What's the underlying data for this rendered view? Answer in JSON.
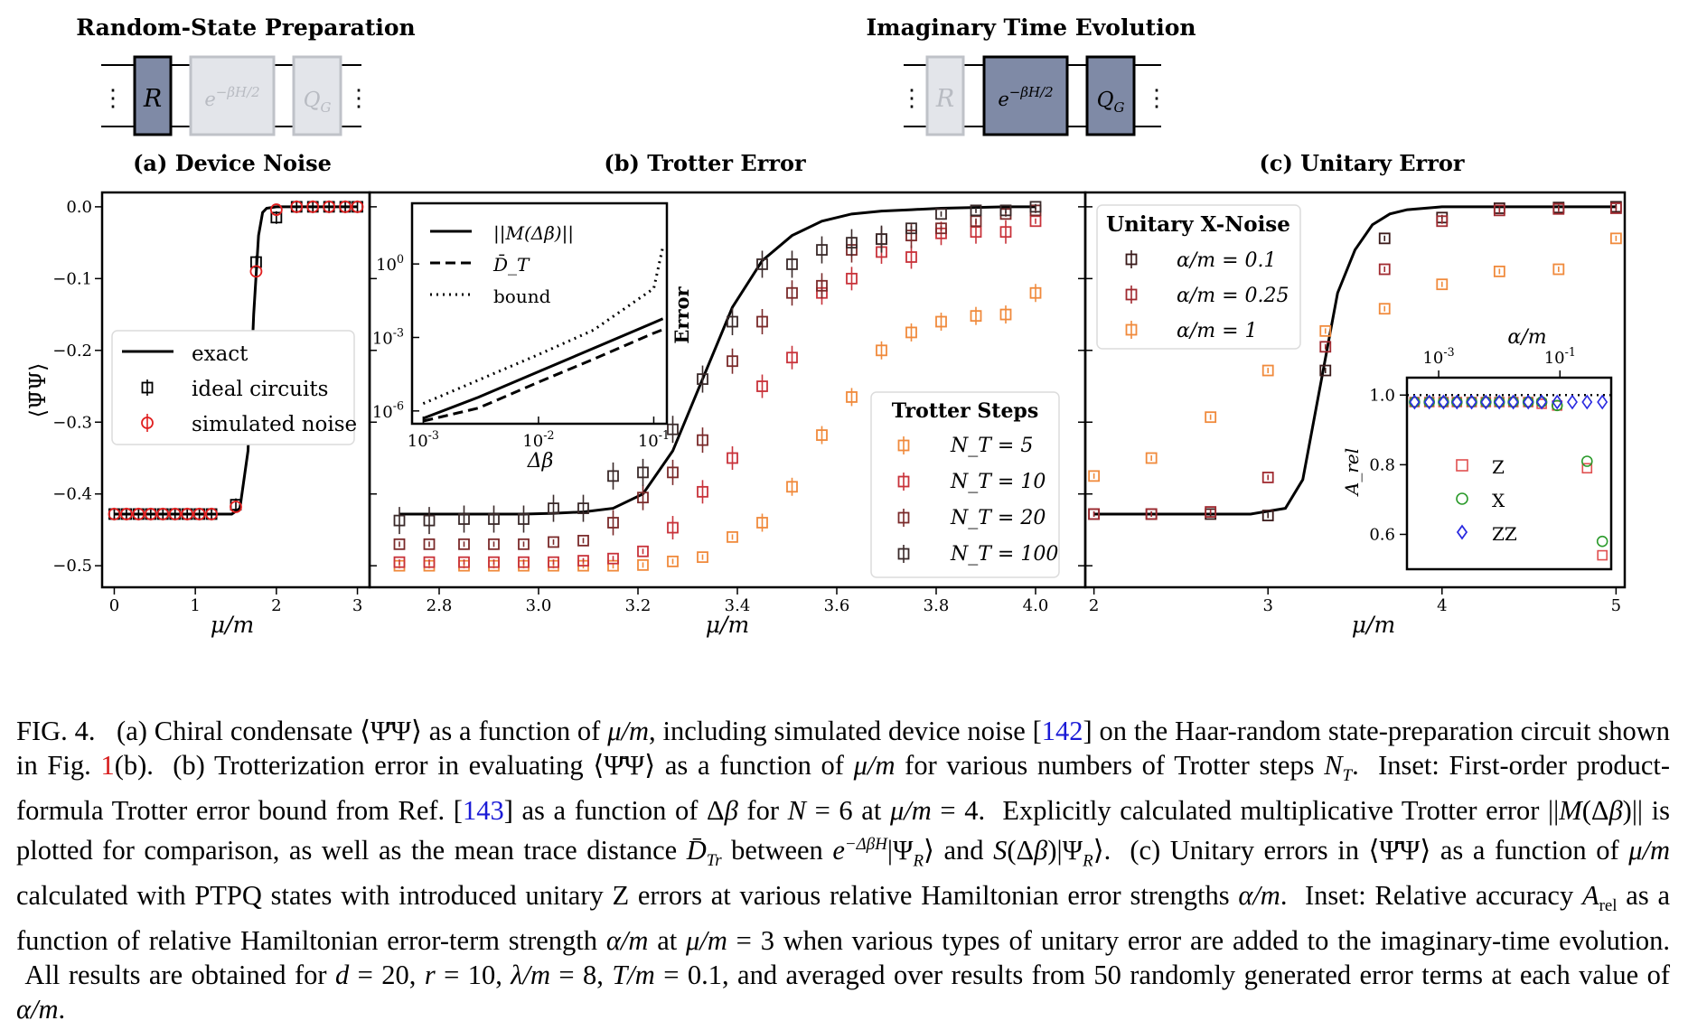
{
  "circuits": [
    {
      "title": "Random-State Preparation",
      "gates": [
        "R",
        "e^{-βH/2}",
        "Q_G"
      ],
      "active": [
        true,
        false,
        false
      ]
    },
    {
      "title": "Imaginary Time Evolution",
      "gates": [
        "R",
        "e^{-βH/2}",
        "Q_G"
      ],
      "active": [
        false,
        true,
        true
      ]
    }
  ],
  "colors": {
    "nt5": "#f08a3c",
    "nt10": "#c8323a",
    "nt20": "#7a2a2a",
    "nt100": "#3a2a2a",
    "ideal": "#000000",
    "noise": "#e02020",
    "a01": "#3a1a1a",
    "a025": "#a02a30",
    "a1": "#f08a3c",
    "Z": "#e05050",
    "X": "#2a9a2a",
    "ZZ": "#2a2ae0"
  },
  "chart_data": [
    {
      "id": "a",
      "type": "scatter",
      "title": "(a) Device Noise",
      "xlabel": "μ/m",
      "ylabel": "⟨Ψ̄Ψ⟩",
      "xlim": [
        -0.15,
        3.15
      ],
      "ylim": [
        -0.53,
        0.02
      ],
      "xticks": [
        0,
        1,
        2,
        3
      ],
      "yticks": [
        0.0,
        -0.1,
        -0.2,
        -0.3,
        -0.4,
        -0.5
      ],
      "ytick_labels": [
        "0.0",
        "−0.1",
        "−0.2",
        "−0.3",
        "−0.4",
        "−0.5"
      ],
      "legend": {
        "placement": "center-left",
        "entries": [
          "exact",
          "ideal circuits",
          "simulated noise"
        ]
      },
      "exact": {
        "x": [
          0,
          1.45,
          1.55,
          1.65,
          1.72,
          1.78,
          1.83,
          1.88,
          2.0,
          3.0
        ],
        "y": [
          -0.428,
          -0.428,
          -0.42,
          -0.34,
          -0.15,
          -0.04,
          -0.008,
          -0.002,
          0,
          0
        ]
      },
      "ideal": {
        "x": [
          0,
          0.15,
          0.3,
          0.45,
          0.6,
          0.75,
          0.9,
          1.05,
          1.2,
          1.5,
          1.75,
          2.0,
          2.25,
          2.45,
          2.65,
          2.85,
          3.0
        ],
        "y": [
          -0.428,
          -0.428,
          -0.428,
          -0.428,
          -0.428,
          -0.428,
          -0.428,
          -0.428,
          -0.428,
          -0.415,
          -0.077,
          -0.015,
          0,
          0,
          0,
          0,
          0
        ]
      },
      "noise": {
        "x": [
          0,
          0.15,
          0.3,
          0.45,
          0.6,
          0.75,
          0.9,
          1.05,
          1.2,
          1.5,
          1.75,
          2.0,
          2.25,
          2.45,
          2.65,
          2.85,
          3.0
        ],
        "y": [
          -0.428,
          -0.428,
          -0.428,
          -0.428,
          -0.428,
          -0.428,
          -0.428,
          -0.428,
          -0.428,
          -0.418,
          -0.09,
          -0.004,
          0,
          0,
          0,
          0,
          0
        ]
      }
    },
    {
      "id": "b",
      "type": "scatter",
      "title": "(b) Trotter Error",
      "xlabel": "μ/m",
      "ylabel": "",
      "xlim": [
        2.66,
        4.1
      ],
      "ylim": [
        -0.53,
        0.02
      ],
      "xticks": [
        2.8,
        3.0,
        3.2,
        3.4,
        3.6,
        3.8,
        4.0
      ],
      "xtick_labels": [
        "2.8",
        "3.0",
        "3.2",
        "3.4",
        "3.6",
        "3.8",
        "4.0"
      ],
      "legend": {
        "title": "Trotter Steps",
        "placement": "lower-right",
        "entries": [
          "N_T = 5",
          "N_T = 10",
          "N_T = 20",
          "N_T = 100"
        ]
      },
      "x": [
        2.72,
        2.78,
        2.85,
        2.91,
        2.97,
        3.03,
        3.09,
        3.15,
        3.21,
        3.27,
        3.33,
        3.39,
        3.45,
        3.51,
        3.57,
        3.63,
        3.69,
        3.75,
        3.81,
        3.88,
        3.94,
        4.0
      ],
      "exact": [
        -0.428,
        -0.428,
        -0.428,
        -0.428,
        -0.428,
        -0.427,
        -0.425,
        -0.42,
        -0.4,
        -0.34,
        -0.24,
        -0.14,
        -0.075,
        -0.04,
        -0.02,
        -0.01,
        -0.006,
        -0.004,
        -0.002,
        -0.001,
        0,
        0
      ],
      "series": [
        {
          "name": "N_T = 5",
          "y": [
            -0.5,
            -0.5,
            -0.5,
            -0.5,
            -0.5,
            -0.5,
            -0.5,
            -0.5,
            -0.499,
            -0.494,
            -0.488,
            -0.46,
            -0.44,
            -0.39,
            -0.318,
            -0.265,
            -0.2,
            -0.175,
            -0.16,
            -0.152,
            -0.15,
            -0.12
          ]
        },
        {
          "name": "N_T = 10",
          "y": [
            -0.495,
            -0.495,
            -0.495,
            -0.495,
            -0.495,
            -0.495,
            -0.493,
            -0.49,
            -0.48,
            -0.447,
            -0.397,
            -0.35,
            -0.25,
            -0.21,
            -0.12,
            -0.1,
            -0.063,
            -0.07,
            -0.037,
            -0.035,
            -0.035,
            -0.02
          ]
        },
        {
          "name": "N_T = 20",
          "y": [
            -0.47,
            -0.47,
            -0.47,
            -0.47,
            -0.47,
            -0.467,
            -0.465,
            -0.44,
            -0.405,
            -0.37,
            -0.325,
            -0.215,
            -0.16,
            -0.12,
            -0.11,
            -0.06,
            -0.045,
            -0.04,
            -0.03,
            -0.02,
            -0.01,
            -0.005
          ]
        },
        {
          "name": "N_T = 100",
          "y": [
            -0.437,
            -0.437,
            -0.435,
            -0.435,
            -0.435,
            -0.42,
            -0.42,
            -0.375,
            -0.37,
            -0.31,
            -0.24,
            -0.16,
            -0.08,
            -0.08,
            -0.06,
            -0.05,
            -0.045,
            -0.03,
            -0.01,
            -0.005,
            -0.005,
            0
          ]
        }
      ]
    },
    {
      "id": "b-inset",
      "type": "line",
      "xlabel": "Δβ",
      "ylabel": "Error",
      "xscale": "log",
      "yscale": "log",
      "xlim": [
        0.0008,
        0.13
      ],
      "ylim": [
        3e-07,
        300
      ],
      "xtick_labels": [
        "10^{-3}",
        "10^{-2}",
        "10^{-1}"
      ],
      "ytick_labels": [
        "10^{0}",
        "10^{-3}",
        "10^{-6}"
      ],
      "legend": {
        "placement": "top-left",
        "entries": [
          "||M(Δβ)||",
          "D̄_T",
          "bound"
        ]
      },
      "x": [
        0.001,
        0.003,
        0.01,
        0.03,
        0.1,
        0.12
      ],
      "series": [
        {
          "name": "||M(Δβ)||",
          "y": [
            5e-07,
            3.6e-06,
            4e-05,
            0.00036,
            0.004,
            0.0058
          ]
        },
        {
          "name": "D̄_T",
          "y": [
            1.5e-07,
            1.3e-06,
            1.5e-05,
            0.00013,
            0.0015,
            0.0021
          ]
        },
        {
          "name": "bound",
          "y": [
            2e-06,
            1.8e-05,
            0.0002,
            0.002,
            0.1,
            5.0
          ]
        }
      ]
    },
    {
      "id": "c",
      "type": "scatter",
      "title": "(c) Unitary Error",
      "xlabel": "μ/m",
      "xlim": [
        1.95,
        5.05
      ],
      "ylim": [
        -0.53,
        0.02
      ],
      "xticks": [
        2,
        3,
        4,
        5
      ],
      "legend": {
        "title": "Unitary X-Noise",
        "placement": "top-left",
        "entries": [
          "α/m = 0.1",
          "α/m = 0.25",
          "α/m = 1"
        ]
      },
      "exact": {
        "x": [
          2,
          2.9,
          3.1,
          3.2,
          3.3,
          3.4,
          3.5,
          3.6,
          3.7,
          3.8,
          4.0,
          5.0
        ],
        "y": [
          -0.428,
          -0.428,
          -0.42,
          -0.38,
          -0.25,
          -0.12,
          -0.06,
          -0.025,
          -0.01,
          -0.004,
          0,
          0
        ]
      },
      "series": [
        {
          "name": "α/m = 0.1",
          "x": [
            2,
            2.33,
            2.67,
            3.0,
            3.33,
            3.67,
            4.0,
            4.33,
            4.67,
            5.0
          ],
          "y": [
            -0.428,
            -0.428,
            -0.428,
            -0.43,
            -0.228,
            -0.044,
            -0.015,
            -0.002,
            -0.001,
            0
          ]
        },
        {
          "name": "α/m = 0.25",
          "x": [
            2,
            2.33,
            2.67,
            3.0,
            3.33,
            3.67,
            4.0,
            4.33,
            4.67,
            5.0
          ],
          "y": [
            -0.428,
            -0.428,
            -0.425,
            -0.377,
            -0.195,
            -0.087,
            -0.02,
            -0.005,
            -0.003,
            -0.002
          ]
        },
        {
          "name": "α/m = 1",
          "x": [
            2,
            2.33,
            2.67,
            3.0,
            3.33,
            3.67,
            4.0,
            4.33,
            4.67,
            5.0
          ],
          "y": [
            -0.375,
            -0.35,
            -0.293,
            -0.228,
            -0.173,
            -0.142,
            -0.108,
            -0.09,
            -0.087,
            -0.044
          ]
        }
      ]
    },
    {
      "id": "c-inset",
      "type": "scatter",
      "xlabel": "α/m",
      "ylabel": "A_rel",
      "xscale": "log",
      "xlim": [
        0.0003,
        0.7
      ],
      "ylim": [
        0.5,
        1.05
      ],
      "xtick_labels": [
        "10^{-3}",
        "10^{-1}"
      ],
      "ytick_labels": [
        "1.0",
        "0.8",
        "0.6"
      ],
      "reference_line": 1.0,
      "legend": {
        "placement": "center-left",
        "entries": [
          "Z",
          "X",
          "ZZ"
        ]
      },
      "x": [
        0.0004,
        0.0007,
        0.0012,
        0.002,
        0.0035,
        0.006,
        0.01,
        0.017,
        0.03,
        0.05,
        0.09,
        0.16,
        0.28,
        0.5
      ],
      "series": [
        {
          "name": "Z",
          "y": [
            0.98,
            0.98,
            0.98,
            0.98,
            0.98,
            0.98,
            0.98,
            0.98,
            0.98,
            0.975,
            0.97,
            null,
            0.79,
            0.54
          ]
        },
        {
          "name": "X",
          "y": [
            0.98,
            0.98,
            0.98,
            0.98,
            0.98,
            0.98,
            0.98,
            0.98,
            0.98,
            0.98,
            0.97,
            null,
            0.81,
            0.58
          ]
        },
        {
          "name": "ZZ",
          "y": [
            0.98,
            0.98,
            0.98,
            0.98,
            0.98,
            0.98,
            0.98,
            0.98,
            0.98,
            0.98,
            0.98,
            0.98,
            0.98,
            0.98
          ]
        }
      ]
    }
  ]
}
